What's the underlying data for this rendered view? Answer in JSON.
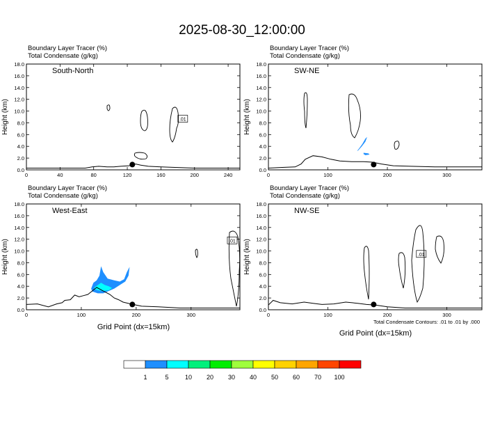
{
  "title": "2025-08-30_12:00:00",
  "field_label_1": "Boundary Layer Tracer   (%)",
  "field_label_2": "Total Condensate   (g/kg)",
  "ylabel": "Height (km)",
  "xlabel": "Grid Point (dx=15km)",
  "contour_note": "Total Condensate Contours: .01 to .01 by .000",
  "chart_data": [
    {
      "type": "heatmap",
      "panel": "South-North",
      "xlim": [
        0,
        254
      ],
      "ylim": [
        0,
        18
      ],
      "xticks": [
        "0",
        "40",
        "80",
        "120",
        "160",
        "200",
        "240"
      ],
      "xtick_values": [
        0,
        40,
        80,
        120,
        160,
        200,
        240
      ],
      "yticks": [
        "0.0",
        "2.0",
        "4.0",
        "6.0",
        "8.0",
        "10.0",
        "12.0",
        "14.0",
        "16.0",
        "18.0"
      ],
      "marker": {
        "x": 126,
        "y": 0.9
      },
      "contour_labels": [
        {
          "text": ".01",
          "x": 186,
          "y": 8.7
        }
      ],
      "terrain": [
        [
          0,
          0.3
        ],
        [
          60,
          0.3
        ],
        [
          70,
          0.3
        ],
        [
          78,
          0.5
        ],
        [
          86,
          0.6
        ],
        [
          96,
          0.5
        ],
        [
          104,
          0.5
        ],
        [
          112,
          0.6
        ],
        [
          122,
          0.7
        ],
        [
          130,
          1.0
        ],
        [
          136,
          0.8
        ],
        [
          145,
          0.6
        ],
        [
          160,
          0.5
        ],
        [
          180,
          0.4
        ],
        [
          200,
          0.3
        ],
        [
          254,
          0.3
        ]
      ]
    },
    {
      "type": "heatmap",
      "panel": "SW-NE",
      "xlim": [
        0,
        359
      ],
      "ylim": [
        0,
        18
      ],
      "xticks": [
        "0",
        "100",
        "200",
        "300"
      ],
      "xtick_values": [
        0,
        100,
        200,
        300
      ],
      "yticks": [
        "0.0",
        "2.0",
        "4.0",
        "6.0",
        "8.0",
        "10.0",
        "12.0",
        "14.0",
        "16.0",
        "18.0"
      ],
      "marker": {
        "x": 177,
        "y": 0.9
      },
      "terrain": [
        [
          0,
          0.3
        ],
        [
          20,
          0.4
        ],
        [
          45,
          0.5
        ],
        [
          55,
          1.0
        ],
        [
          62,
          1.8
        ],
        [
          75,
          2.4
        ],
        [
          90,
          2.2
        ],
        [
          105,
          1.8
        ],
        [
          120,
          1.5
        ],
        [
          140,
          1.4
        ],
        [
          160,
          1.4
        ],
        [
          175,
          1.3
        ],
        [
          190,
          1.0
        ],
        [
          210,
          0.7
        ],
        [
          240,
          0.6
        ],
        [
          280,
          0.5
        ],
        [
          320,
          0.5
        ],
        [
          359,
          0.5
        ]
      ],
      "tracer_areas": [
        {
          "level": "1-5",
          "points": [
            [
              151,
              3.3
            ],
            [
              157,
              4.0
            ],
            [
              163,
              4.8
            ],
            [
              166,
              5.6
            ],
            [
              163,
              5.3
            ],
            [
              158,
              4.4
            ],
            [
              153,
              3.7
            ],
            [
              149,
              3.2
            ]
          ]
        },
        {
          "level": "1-5",
          "points": [
            [
              160,
              2.9
            ],
            [
              168,
              2.8
            ],
            [
              170,
              2.6
            ],
            [
              163,
              2.5
            ],
            [
              160,
              2.7
            ]
          ]
        }
      ]
    },
    {
      "type": "heatmap",
      "panel": "West-East",
      "xlim": [
        0,
        389
      ],
      "ylim": [
        0,
        18
      ],
      "xticks": [
        "0",
        "100",
        "200",
        "300"
      ],
      "xtick_values": [
        0,
        100,
        200,
        300
      ],
      "yticks": [
        "0.0",
        "2.0",
        "4.0",
        "6.0",
        "8.0",
        "10.0",
        "12.0",
        "14.0",
        "16.0",
        "18.0"
      ],
      "marker": {
        "x": 193,
        "y": 0.9
      },
      "contour_labels": [
        {
          "text": ".01",
          "x": 375,
          "y": 11.8
        }
      ],
      "terrain": [
        [
          0,
          0.9
        ],
        [
          20,
          1.0
        ],
        [
          40,
          0.5
        ],
        [
          55,
          1.0
        ],
        [
          65,
          1.2
        ],
        [
          70,
          1.6
        ],
        [
          80,
          1.7
        ],
        [
          88,
          2.5
        ],
        [
          96,
          2.2
        ],
        [
          104,
          2.4
        ],
        [
          112,
          2.6
        ],
        [
          120,
          3.2
        ],
        [
          128,
          3.8
        ],
        [
          136,
          3.4
        ],
        [
          144,
          3.0
        ],
        [
          152,
          2.6
        ],
        [
          160,
          2.0
        ],
        [
          168,
          1.7
        ],
        [
          176,
          1.3
        ],
        [
          190,
          1.0
        ],
        [
          210,
          0.6
        ],
        [
          240,
          0.5
        ],
        [
          280,
          0.3
        ],
        [
          340,
          0.3
        ],
        [
          389,
          0.3
        ]
      ],
      "tracer_areas": [
        {
          "level": "1-5",
          "points": [
            [
              118,
              3.6
            ],
            [
              122,
              4.6
            ],
            [
              128,
              5.0
            ],
            [
              133,
              5.8
            ],
            [
              136,
              7.4
            ],
            [
              140,
              6.4
            ],
            [
              148,
              5.3
            ],
            [
              160,
              5.0
            ],
            [
              170,
              4.8
            ],
            [
              178,
              5.2
            ],
            [
              183,
              6.4
            ],
            [
              188,
              7.3
            ],
            [
              186,
              5.8
            ],
            [
              180,
              4.8
            ],
            [
              170,
              4.2
            ],
            [
              160,
              3.6
            ],
            [
              150,
              3.2
            ],
            [
              140,
              2.8
            ],
            [
              130,
              2.8
            ],
            [
              120,
              3.1
            ]
          ]
        },
        {
          "level": "5-10",
          "points": [
            [
              124,
              3.8
            ],
            [
              130,
              4.2
            ],
            [
              136,
              4.6
            ],
            [
              143,
              4.2
            ],
            [
              150,
              4.0
            ],
            [
              156,
              3.7
            ],
            [
              150,
              3.3
            ],
            [
              140,
              3.2
            ],
            [
              130,
              3.3
            ],
            [
              124,
              3.5
            ]
          ]
        }
      ]
    },
    {
      "type": "heatmap",
      "panel": "NW-SE",
      "xlim": [
        0,
        359
      ],
      "ylim": [
        0,
        18
      ],
      "xticks": [
        "0",
        "100",
        "200",
        "300"
      ],
      "xtick_values": [
        0,
        100,
        200,
        300
      ],
      "yticks": [
        "0.0",
        "2.0",
        "4.0",
        "6.0",
        "8.0",
        "10.0",
        "12.0",
        "14.0",
        "16.0",
        "18.0"
      ],
      "marker": {
        "x": 177,
        "y": 0.9
      },
      "contour_labels": [
        {
          "text": ".01",
          "x": 257,
          "y": 9.5
        }
      ],
      "terrain": [
        [
          0,
          0.8
        ],
        [
          8,
          1.6
        ],
        [
          20,
          1.2
        ],
        [
          40,
          1.0
        ],
        [
          60,
          1.3
        ],
        [
          75,
          1.1
        ],
        [
          90,
          0.9
        ],
        [
          110,
          1.0
        ],
        [
          130,
          1.3
        ],
        [
          150,
          1.1
        ],
        [
          165,
          0.9
        ],
        [
          180,
          0.8
        ],
        [
          200,
          0.5
        ],
        [
          230,
          0.3
        ],
        [
          300,
          0.3
        ],
        [
          359,
          0.3
        ]
      ]
    }
  ],
  "colorbar": {
    "colors": [
      "#ffffff",
      "#1e8fff",
      "#00ffff",
      "#00f07c",
      "#00ee00",
      "#9fff3c",
      "#ffff00",
      "#ffd200",
      "#ffa500",
      "#ff4500",
      "#ff0000"
    ],
    "labels": [
      "1",
      "5",
      "10",
      "20",
      "30",
      "40",
      "50",
      "60",
      "70",
      "100"
    ]
  }
}
